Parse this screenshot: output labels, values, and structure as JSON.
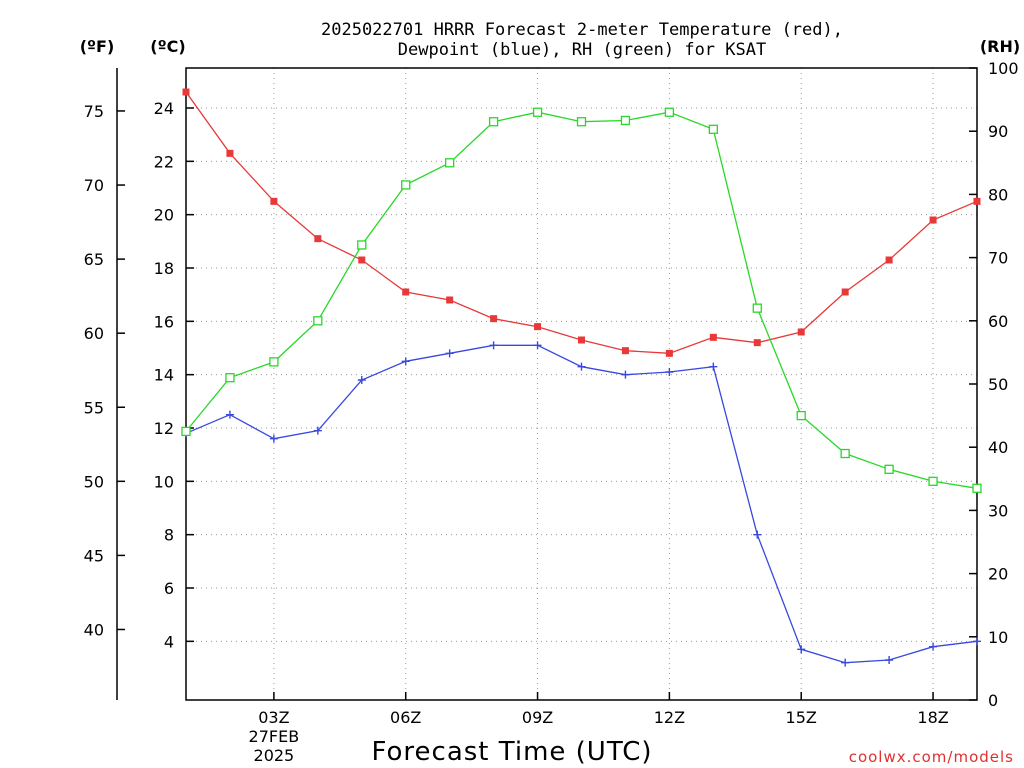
{
  "chart_data": {
    "type": "line",
    "title_line1": "2025022701 HRRR Forecast 2-meter Temperature (red),",
    "title_line2": "Dewpoint (blue), RH (green) for KSAT",
    "unit_f": "(ºF)",
    "unit_c": "(ºC)",
    "unit_rh": "(RH)",
    "xlabel": "Forecast Time (UTC)",
    "credit": "coolwx.com/models",
    "x_ticks": [
      {
        "hour": 3,
        "label": "03Z",
        "label2": "27FEB",
        "label3": "2025"
      },
      {
        "hour": 6,
        "label": "06Z"
      },
      {
        "hour": 9,
        "label": "09Z"
      },
      {
        "hour": 12,
        "label": "12Z"
      },
      {
        "hour": 15,
        "label": "15Z"
      },
      {
        "hour": 18,
        "label": "18Z"
      }
    ],
    "xlim": [
      1,
      19
    ],
    "ylim_c": [
      1.8,
      25.5
    ],
    "ylim_rh": [
      0,
      100
    ],
    "y_ticks_c": [
      4,
      6,
      8,
      10,
      12,
      14,
      16,
      18,
      20,
      22,
      24
    ],
    "y_ticks_f": [
      40,
      45,
      50,
      55,
      60,
      65,
      70,
      75
    ],
    "y_ticks_rh": [
      0,
      10,
      20,
      30,
      40,
      50,
      60,
      70,
      80,
      90,
      100
    ],
    "x": [
      1,
      2,
      3,
      4,
      5,
      6,
      7,
      8,
      9,
      10,
      11,
      12,
      13,
      14,
      15,
      16,
      17,
      18,
      19
    ],
    "series": [
      {
        "color": "#e83838",
        "marker": "filled-square",
        "axis": "c",
        "values": [
          24.6,
          22.3,
          20.5,
          19.1,
          18.3,
          17.1,
          16.8,
          16.1,
          15.8,
          15.3,
          14.9,
          14.8,
          15.4,
          15.2,
          15.6,
          17.1,
          18.3,
          19.8,
          20.5
        ]
      },
      {
        "color": "#3848e0",
        "marker": "plus",
        "axis": "c",
        "values": [
          11.8,
          12.5,
          11.6,
          11.9,
          13.8,
          14.5,
          14.8,
          15.1,
          15.1,
          14.3,
          14.0,
          14.1,
          14.3,
          8.0,
          3.7,
          3.2,
          3.3,
          3.8,
          4.0
        ]
      },
      {
        "color": "#28d828",
        "marker": "open-square",
        "axis": "rh",
        "values": [
          42.5,
          51,
          53.5,
          60,
          72,
          81.5,
          85,
          91.5,
          93,
          91.5,
          91.7,
          93,
          90.3,
          62,
          45,
          39,
          36.5,
          34.6,
          33.5
        ]
      }
    ],
    "grid": true
  }
}
